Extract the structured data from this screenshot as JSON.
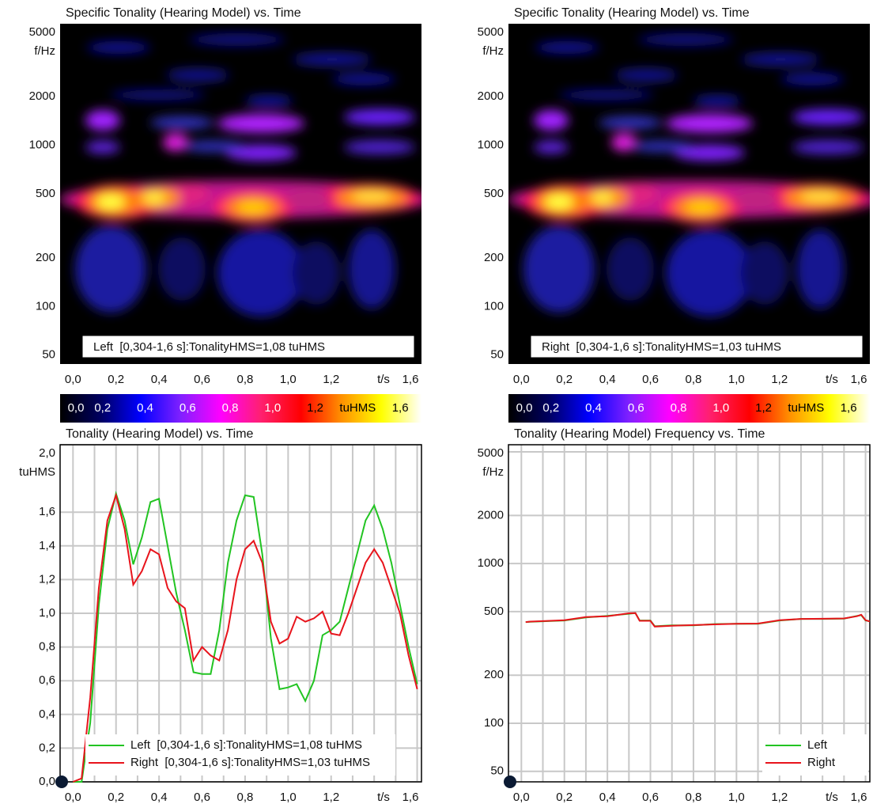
{
  "chart_data": [
    {
      "type": "heatmap",
      "title": "Specific Tonality (Hearing Model) vs. Time",
      "ylabel": "f/Hz",
      "xlabel": "t/s",
      "ylog": true,
      "ylim": [
        44,
        5660
      ],
      "yticks": [
        50,
        100,
        200,
        500,
        1000,
        2000,
        5000
      ],
      "xlim": [
        -0.06,
        1.62
      ],
      "xticks": [
        {
          "value": 0,
          "label": "0,0"
        },
        {
          "value": 0.2,
          "label": "0,2"
        },
        {
          "value": 0.4,
          "label": "0,4"
        },
        {
          "value": 0.6,
          "label": "0,6"
        },
        {
          "value": 0.8,
          "label": "0,8"
        },
        {
          "value": 1.0,
          "label": "1,0"
        },
        {
          "value": 1.2,
          "label": "1,2"
        },
        {
          "value": 1.6,
          "label": "1,6"
        }
      ],
      "annotation": "Left  [0,304-1,6 s]:TonalityHMS=1,08 tuHMS",
      "colorbar": {
        "lim": [
          0,
          1.7
        ],
        "unit": "tuHMS",
        "ticks": [
          {
            "value": 0,
            "label": "0,0"
          },
          {
            "value": 0.2,
            "label": "0,2"
          },
          {
            "value": 0.4,
            "label": "0,4"
          },
          {
            "value": 0.6,
            "label": "0,6"
          },
          {
            "value": 0.8,
            "label": "0,8"
          },
          {
            "value": 1.0,
            "label": "1,0"
          },
          {
            "value": 1.2,
            "label": "1,2"
          },
          {
            "value": 1.6,
            "label": "1,6"
          }
        ],
        "colors": [
          "#000000",
          "#000060",
          "#0000ff",
          "#8020ff",
          "#ff00ff",
          "#ff2070",
          "#ff0000",
          "#ff9000",
          "#ffff00",
          "#ffffff"
        ]
      }
    },
    {
      "type": "heatmap",
      "title": "Specific Tonality (Hearing Model) vs. Time",
      "ylabel": "f/Hz",
      "xlabel": "t/s",
      "ylog": true,
      "ylim": [
        44,
        5660
      ],
      "yticks": [
        50,
        100,
        200,
        500,
        1000,
        2000,
        5000
      ],
      "xlim": [
        -0.06,
        1.62
      ],
      "xticks": [
        {
          "value": 0,
          "label": "0,0"
        },
        {
          "value": 0.2,
          "label": "0,2"
        },
        {
          "value": 0.4,
          "label": "0,4"
        },
        {
          "value": 0.6,
          "label": "0,6"
        },
        {
          "value": 0.8,
          "label": "0,8"
        },
        {
          "value": 1.0,
          "label": "1,0"
        },
        {
          "value": 1.2,
          "label": "1,2"
        },
        {
          "value": 1.6,
          "label": "1,6"
        }
      ],
      "annotation": "Right  [0,304-1,6 s]:TonalityHMS=1,03 tuHMS",
      "colorbar": {
        "lim": [
          0,
          1.7
        ],
        "unit": "tuHMS",
        "ticks": [
          {
            "value": 0,
            "label": "0,0"
          },
          {
            "value": 0.2,
            "label": "0,2"
          },
          {
            "value": 0.4,
            "label": "0,4"
          },
          {
            "value": 0.6,
            "label": "0,6"
          },
          {
            "value": 0.8,
            "label": "0,8"
          },
          {
            "value": 1.0,
            "label": "1,0"
          },
          {
            "value": 1.2,
            "label": "1,2"
          },
          {
            "value": 1.6,
            "label": "1,6"
          }
        ],
        "colors": [
          "#000000",
          "#000060",
          "#0000ff",
          "#8020ff",
          "#ff00ff",
          "#ff2070",
          "#ff0000",
          "#ff9000",
          "#ffff00",
          "#ffffff"
        ]
      }
    },
    {
      "type": "line",
      "title": "Tonality (Hearing Model) vs. Time",
      "ylabel": "tuHMS",
      "xlabel": "t/s",
      "ylim": [
        0,
        2.0
      ],
      "yticks": [
        {
          "value": 0,
          "label": "0,0"
        },
        {
          "value": 0.2,
          "label": "0,2"
        },
        {
          "value": 0.4,
          "label": "0,4"
        },
        {
          "value": 0.6,
          "label": "0,6"
        },
        {
          "value": 0.8,
          "label": "0,8"
        },
        {
          "value": 1.0,
          "label": "1,0"
        },
        {
          "value": 1.2,
          "label": "1,2"
        },
        {
          "value": 1.4,
          "label": "1,4"
        },
        {
          "value": 1.6,
          "label": "1,6"
        },
        {
          "value": 2.0,
          "label": "2,0"
        }
      ],
      "xlim": [
        -0.06,
        1.62
      ],
      "xticks": [
        {
          "value": 0,
          "label": "0,0"
        },
        {
          "value": 0.2,
          "label": "0,2"
        },
        {
          "value": 0.4,
          "label": "0,4"
        },
        {
          "value": 0.6,
          "label": "0,6"
        },
        {
          "value": 0.8,
          "label": "0,8"
        },
        {
          "value": 1.0,
          "label": "1,0"
        },
        {
          "value": 1.2,
          "label": "1,2"
        },
        {
          "value": 1.6,
          "label": "1,6"
        }
      ],
      "grid": true,
      "xgrid": [
        0,
        0.1,
        0.2,
        0.3,
        0.4,
        0.5,
        0.6,
        0.7,
        0.8,
        0.9,
        1.0,
        1.1,
        1.2,
        1.3,
        1.4,
        1.5,
        1.6
      ],
      "legend": "lower left",
      "x": [
        0,
        0.04,
        0.08,
        0.12,
        0.16,
        0.2,
        0.24,
        0.28,
        0.32,
        0.36,
        0.4,
        0.44,
        0.48,
        0.52,
        0.56,
        0.6,
        0.64,
        0.68,
        0.72,
        0.76,
        0.8,
        0.84,
        0.88,
        0.92,
        0.96,
        1.0,
        1.04,
        1.08,
        1.12,
        1.16,
        1.2,
        1.24,
        1.28,
        1.32,
        1.36,
        1.4,
        1.44,
        1.48,
        1.52,
        1.56,
        1.6
      ],
      "series": [
        {
          "name": "Left  [0,304-1,6 s]:TonalityHMS=1,08 tuHMS",
          "color": "#22c422",
          "values": [
            0,
            0,
            0.35,
            1.05,
            1.5,
            1.71,
            1.55,
            1.29,
            1.45,
            1.66,
            1.68,
            1.4,
            1.12,
            0.9,
            0.65,
            0.64,
            0.64,
            0.9,
            1.3,
            1.55,
            1.7,
            1.69,
            1.35,
            0.85,
            0.55,
            0.56,
            0.58,
            0.48,
            0.6,
            0.87,
            0.9,
            0.95,
            1.15,
            1.35,
            1.55,
            1.64,
            1.5,
            1.3,
            1.05,
            0.8,
            0.58
          ]
        },
        {
          "name": "Right  [0,304-1,6 s]:TonalityHMS=1,03 tuHMS",
          "color": "#e8141c",
          "values": [
            0,
            0.02,
            0.5,
            1.15,
            1.55,
            1.7,
            1.5,
            1.17,
            1.25,
            1.38,
            1.35,
            1.15,
            1.07,
            1.03,
            0.72,
            0.8,
            0.75,
            0.72,
            0.9,
            1.2,
            1.38,
            1.43,
            1.3,
            0.95,
            0.82,
            0.85,
            0.98,
            0.95,
            0.97,
            1.01,
            0.88,
            0.87,
            1.0,
            1.15,
            1.3,
            1.38,
            1.3,
            1.15,
            1.0,
            0.75,
            0.55
          ]
        }
      ]
    },
    {
      "type": "line",
      "title": "Tonality (Hearing Model) Frequency vs. Time",
      "ylabel": "f/Hz",
      "xlabel": "t/s",
      "ylog": true,
      "ylim": [
        43,
        5540
      ],
      "yticks": [
        50,
        100,
        200,
        500,
        1000,
        2000,
        5000
      ],
      "xlim": [
        -0.06,
        1.62
      ],
      "xticks": [
        {
          "value": 0,
          "label": "0,0"
        },
        {
          "value": 0.2,
          "label": "0,2"
        },
        {
          "value": 0.4,
          "label": "0,4"
        },
        {
          "value": 0.6,
          "label": "0,6"
        },
        {
          "value": 0.8,
          "label": "0,8"
        },
        {
          "value": 1.0,
          "label": "1,0"
        },
        {
          "value": 1.2,
          "label": "1,2"
        },
        {
          "value": 1.6,
          "label": "1,6"
        }
      ],
      "grid": true,
      "xgrid": [
        0,
        0.1,
        0.2,
        0.3,
        0.4,
        0.5,
        0.6,
        0.7,
        0.8,
        0.9,
        1.0,
        1.1,
        1.2,
        1.3,
        1.4,
        1.5,
        1.6
      ],
      "legend": "lower right",
      "x": [
        0.02,
        0.04,
        0.1,
        0.2,
        0.3,
        0.4,
        0.5,
        0.53,
        0.55,
        0.6,
        0.62,
        0.7,
        0.8,
        0.9,
        1.0,
        1.1,
        1.2,
        1.3,
        1.4,
        1.5,
        1.56,
        1.58,
        1.6,
        1.62
      ],
      "series": [
        {
          "name": "Left",
          "color": "#22c422",
          "values": [
            430,
            432,
            435,
            440,
            460,
            470,
            485,
            490,
            440,
            440,
            405,
            410,
            410,
            418,
            420,
            420,
            440,
            450,
            450,
            452,
            470,
            475,
            440,
            435
          ]
        },
        {
          "name": "Right",
          "color": "#e8141c",
          "values": [
            430,
            433,
            436,
            442,
            462,
            468,
            488,
            490,
            438,
            438,
            403,
            408,
            412,
            416,
            420,
            421,
            442,
            450,
            451,
            453,
            468,
            478,
            442,
            434
          ]
        }
      ]
    }
  ]
}
